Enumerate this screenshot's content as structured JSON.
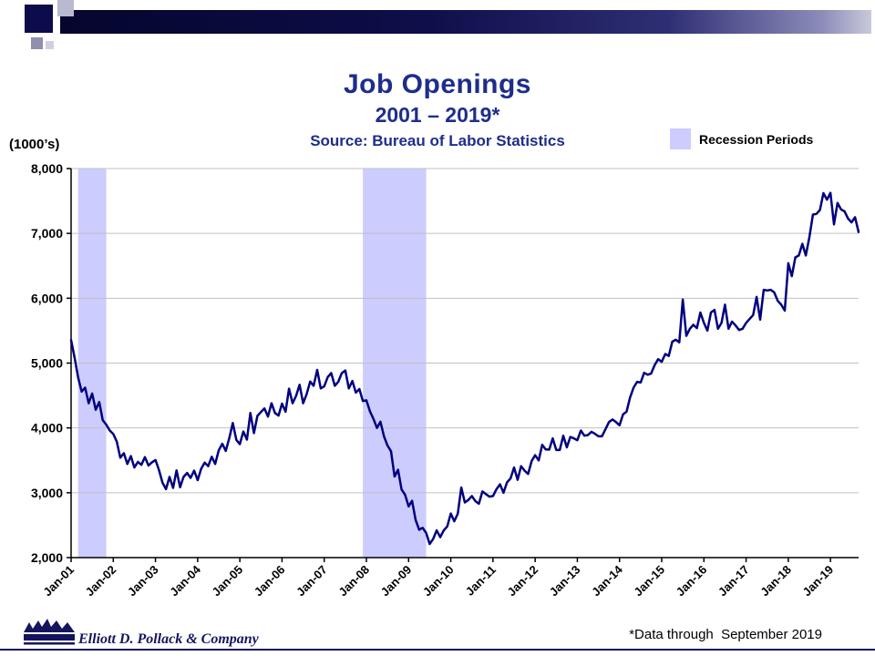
{
  "slide": {
    "title": "Job Openings",
    "subtitle": "2001 – 2019*",
    "source": "Source: Bureau of Labor Statistics",
    "y_axis_unit": "(1000’s)",
    "legend": {
      "label": "Recession Periods",
      "swatch_color": "#ccccff"
    },
    "footnote": "*Data through  September 2019",
    "company": "Elliott D. Pollack & Company"
  },
  "chart_data": {
    "type": "line",
    "title": "Job Openings",
    "subtitle": "2001 – 2019*",
    "ylabel": "(1000’s)",
    "ylim": [
      2000,
      8000
    ],
    "ytick_values": [
      2000,
      3000,
      4000,
      5000,
      6000,
      7000,
      8000
    ],
    "ytick_labels": [
      "2,000",
      "3,000",
      "4,000",
      "5,000",
      "6,000",
      "7,000",
      "8,000"
    ],
    "grid": "horizontal",
    "legend_position": "top-right",
    "x_unit": "month",
    "x_start": "Jan-01",
    "x_end": "Sep-19",
    "x_max_index": 224,
    "categories": [
      "Jan-01",
      "Jan-02",
      "Jan-03",
      "Jan-04",
      "Jan-05",
      "Jan-06",
      "Jan-07",
      "Jan-08",
      "Jan-09",
      "Jan-10",
      "Jan-11",
      "Jan-12",
      "Jan-13",
      "Jan-14",
      "Jan-15",
      "Jan-16",
      "Jan-17",
      "Jan-18",
      "Jan-19"
    ],
    "xtick_indices": [
      0,
      12,
      24,
      36,
      48,
      60,
      72,
      84,
      96,
      108,
      120,
      132,
      144,
      156,
      168,
      180,
      192,
      204,
      216
    ],
    "recessions": [
      {
        "label": "Mar-01 to Nov-01",
        "start_index": 2,
        "end_index": 10
      },
      {
        "label": "Dec-07 to Jun-09",
        "start_index": 83,
        "end_index": 101
      }
    ],
    "colors": {
      "line": "#000080",
      "recession_band": "#ccccff",
      "gridline": "#c0c0c0",
      "axis": "#000000",
      "title_blue": "#1e2d8c"
    },
    "series": [
      {
        "name": "Job openings (1000's)",
        "values": [
          5354,
          5080,
          4780,
          4560,
          4620,
          4380,
          4530,
          4280,
          4400,
          4120,
          4050,
          3960,
          3905,
          3790,
          3540,
          3610,
          3445,
          3565,
          3390,
          3475,
          3430,
          3550,
          3420,
          3470,
          3505,
          3350,
          3155,
          3055,
          3245,
          3075,
          3345,
          3085,
          3245,
          3305,
          3230,
          3340,
          3195,
          3370,
          3465,
          3410,
          3555,
          3445,
          3655,
          3755,
          3645,
          3845,
          4075,
          3815,
          3750,
          3945,
          3820,
          4230,
          3920,
          4185,
          4245,
          4300,
          4175,
          4380,
          4230,
          4190,
          4375,
          4250,
          4605,
          4380,
          4495,
          4665,
          4380,
          4520,
          4715,
          4650,
          4895,
          4610,
          4640,
          4785,
          4845,
          4650,
          4710,
          4845,
          4885,
          4610,
          4725,
          4545,
          4600,
          4415,
          4425,
          4255,
          4140,
          4000,
          4095,
          3870,
          3730,
          3640,
          3250,
          3355,
          3050,
          2970,
          2790,
          2875,
          2580,
          2430,
          2460,
          2380,
          2210,
          2290,
          2420,
          2315,
          2420,
          2480,
          2680,
          2560,
          2680,
          3080,
          2850,
          2890,
          2950,
          2870,
          2830,
          3020,
          2980,
          2940,
          2950,
          3055,
          3130,
          3000,
          3160,
          3220,
          3390,
          3200,
          3410,
          3340,
          3290,
          3490,
          3580,
          3500,
          3740,
          3670,
          3665,
          3840,
          3660,
          3660,
          3880,
          3700,
          3860,
          3840,
          3810,
          3960,
          3880,
          3890,
          3940,
          3910,
          3870,
          3870,
          3980,
          4090,
          4130,
          4090,
          4040,
          4210,
          4250,
          4470,
          4620,
          4710,
          4700,
          4850,
          4820,
          4840,
          4970,
          5060,
          5020,
          5140,
          5110,
          5330,
          5360,
          5320,
          5980,
          5420,
          5530,
          5590,
          5540,
          5780,
          5620,
          5500,
          5780,
          5820,
          5530,
          5620,
          5900,
          5530,
          5640,
          5580,
          5510,
          5530,
          5620,
          5680,
          5740,
          6020,
          5670,
          6130,
          6120,
          6130,
          6090,
          5960,
          5900,
          5810,
          6540,
          6340,
          6630,
          6660,
          6840,
          6660,
          6940,
          7290,
          7300,
          7360,
          7620,
          7520,
          7625,
          7140,
          7470,
          7370,
          7340,
          7230,
          7170,
          7250,
          7020
        ]
      }
    ]
  }
}
